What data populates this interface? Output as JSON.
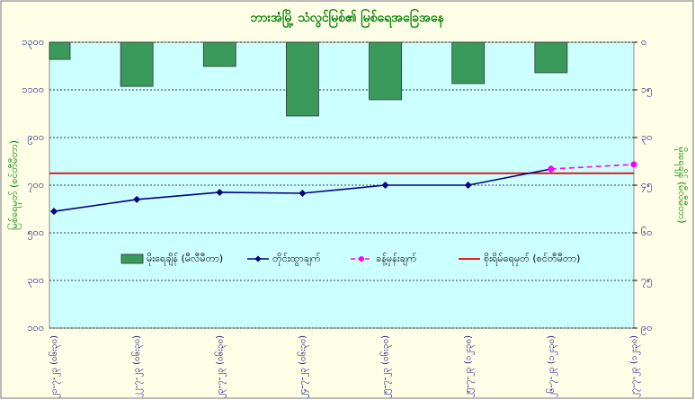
{
  "chart_data": {
    "type": "bar-line",
    "title": "ဘားအံမြို့ သံလွင်မြစ်၏ မြစ်ရေအခြေအနေ",
    "y_label": "မြစ်ရေမှတ် (စင်တီမီတာ)",
    "y2_label": "မိုးရေချိန် (မီလီမီတာ)",
    "categories": [
      "၂၁-၇-၂၃ (၀၆း၃၀)",
      "၂၂-၇-၂၃ (၀၆း၃၀)",
      "၂၃-၇-၂၃ (၀၆း၃၀)",
      "၂၄-၇-၂၃ (၀၆း၃၀)",
      "၂၅-၇-၂၃ (၀၆း၃၀)",
      "၂၅-၇-၂၃ (၁၂း၃၀)",
      "၂၆-၇-၂၃ (၁၂း၃၀)",
      "၂၇-၇-၂၃ (၁၂း၃၀)"
    ],
    "series": [
      {
        "name": "မိုးရေချိန် (မီလီမီတာ)",
        "kind": "bar",
        "axis": "y2",
        "color": "#3a9a5b",
        "values": [
          5.4,
          13.9,
          7.6,
          23.2,
          18.1,
          13.0,
          9.6,
          null
        ]
      },
      {
        "name": "တိုင်းထွာချက်",
        "kind": "line",
        "color": "#000080",
        "values": [
          590,
          640,
          670,
          666,
          700,
          700,
          768,
          null
        ]
      },
      {
        "name": "ခန့်မှန်းချက်",
        "kind": "dashed",
        "color": "#ff00ff",
        "values": [
          null,
          null,
          null,
          null,
          null,
          null,
          768,
          787
        ]
      }
    ],
    "danger": {
      "name": "စိုးရိမ်ရေမှတ် (စင်တီမီတာ)",
      "value": 750,
      "color": "#e00000"
    },
    "ylim": [
      100,
      1300
    ],
    "yticks": [
      {
        "value": 100,
        "label": "၁၀၀"
      },
      {
        "value": 300,
        "label": "၃၀၀"
      },
      {
        "value": 500,
        "label": "၅၀၀"
      },
      {
        "value": 700,
        "label": "၇၀၀"
      },
      {
        "value": 900,
        "label": "၉၀၀"
      },
      {
        "value": 1100,
        "label": "၁၁၀၀"
      },
      {
        "value": 1300,
        "label": "၁၃၀၀"
      }
    ],
    "y2lim": [
      0,
      90
    ],
    "y2ticks": [
      {
        "value": 0,
        "label": "၀"
      },
      {
        "value": 15,
        "label": "၁၅"
      },
      {
        "value": 30,
        "label": "၃၀"
      },
      {
        "value": 45,
        "label": "၄၅"
      },
      {
        "value": 60,
        "label": "၆၀"
      },
      {
        "value": 75,
        "label": "၇၅"
      },
      {
        "value": 90,
        "label": "၉၀"
      }
    ],
    "y2_reversed": true,
    "grid": true
  }
}
